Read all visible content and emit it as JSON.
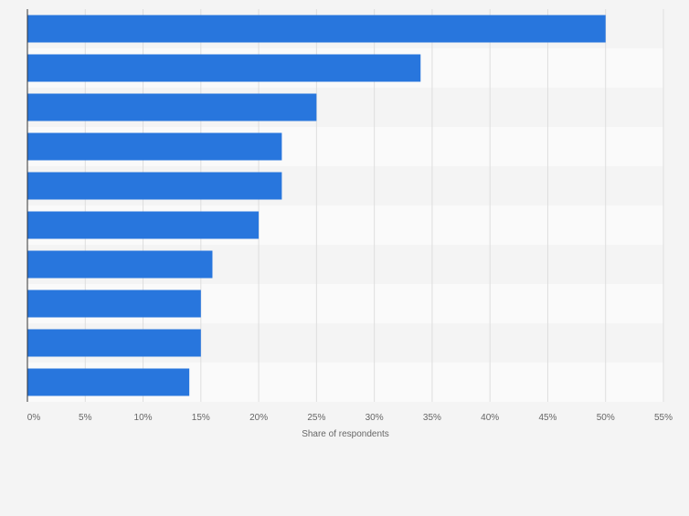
{
  "chart_data": {
    "type": "bar",
    "orientation": "horizontal",
    "categories": [
      "",
      "",
      "",
      "",
      "",
      "",
      "",
      "",
      "",
      ""
    ],
    "values": [
      50,
      34,
      25,
      22,
      22,
      20,
      16,
      15,
      15,
      14
    ],
    "xlabel": "Share of respondents",
    "xlim": [
      0,
      55
    ],
    "x_ticks": [
      "0%",
      "5%",
      "10%",
      "15%",
      "20%",
      "25%",
      "30%",
      "35%",
      "40%",
      "45%",
      "50%",
      "55%"
    ],
    "grid": true,
    "colors": {
      "bar": "#2876dd",
      "band_light": "#fafafa",
      "band_dark": "#f4f4f4",
      "grid": "#dedede",
      "axis": "#333333",
      "tick_text": "#666666"
    }
  }
}
